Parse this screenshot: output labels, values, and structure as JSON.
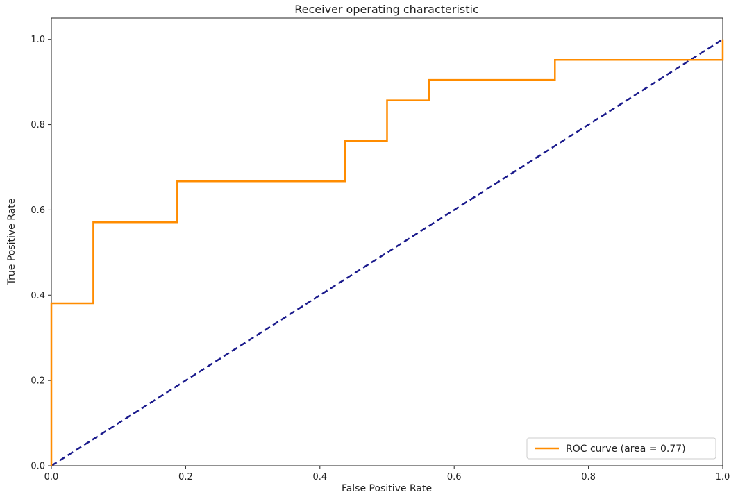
{
  "chart_data": {
    "type": "line",
    "title": "Receiver operating characteristic",
    "xlabel": "False Positive Rate",
    "ylabel": "True Positive Rate",
    "xlim": [
      0.0,
      1.0
    ],
    "ylim": [
      0.0,
      1.05
    ],
    "xticks": [
      "0.0",
      "0.2",
      "0.4",
      "0.6",
      "0.8",
      "1.0"
    ],
    "yticks": [
      "0.0",
      "0.2",
      "0.4",
      "0.6",
      "0.8",
      "1.0"
    ],
    "grid": false,
    "legend_position": "lower right",
    "series": [
      {
        "name": "ROC curve (area = 0.77)",
        "color": "#ff8c00",
        "style": "solid",
        "x": [
          0.0,
          0.0,
          0.0625,
          0.0625,
          0.1875,
          0.1875,
          0.4375,
          0.4375,
          0.5,
          0.5,
          0.5625,
          0.5625,
          0.75,
          0.75,
          1.0,
          1.0
        ],
        "y": [
          0.0,
          0.381,
          0.381,
          0.571,
          0.571,
          0.667,
          0.667,
          0.762,
          0.762,
          0.857,
          0.857,
          0.905,
          0.905,
          0.952,
          0.952,
          1.0
        ]
      },
      {
        "name": "",
        "color": "#1a1a8c",
        "style": "dashed",
        "x": [
          0.0,
          1.0
        ],
        "y": [
          0.0,
          1.0
        ]
      }
    ]
  }
}
